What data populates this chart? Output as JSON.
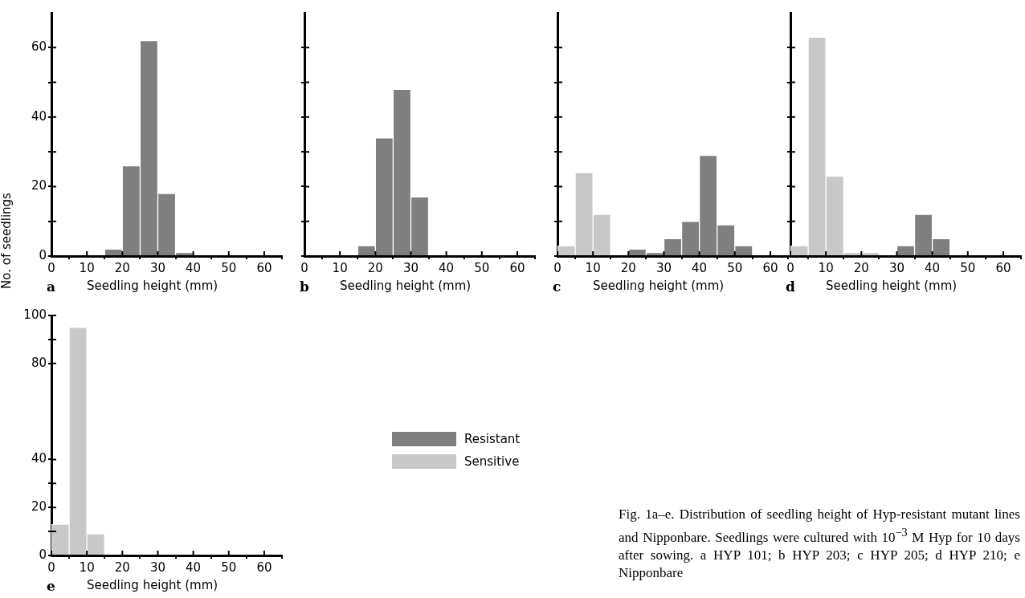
{
  "chart_data": [
    {
      "type": "histogram",
      "title": "a",
      "xlabel": "Seedling height (mm)",
      "ylabel": "No. of seedlings",
      "bins": [
        0,
        5,
        10,
        15,
        20,
        25,
        30,
        35,
        40,
        45,
        50,
        55,
        60,
        65
      ],
      "xlim": [
        0,
        65
      ],
      "xticks": [
        0,
        10,
        20,
        30,
        40,
        50,
        60
      ],
      "ylim": [
        0,
        70
      ],
      "yticks": [
        0,
        {
          "value": 10,
          "label": null
        },
        20,
        {
          "value": 30,
          "label": null
        },
        40,
        {
          "value": 50,
          "label": null
        },
        60
      ],
      "series": [
        {
          "color": "#7f7f7f",
          "values": [
            0,
            0,
            0,
            2,
            26,
            62,
            18,
            1,
            0,
            0,
            0,
            0,
            0
          ]
        }
      ]
    },
    {
      "type": "histogram",
      "title": "b",
      "xlabel": "Seedling height (mm)",
      "tick_labels": "x",
      "bins": [
        0,
        5,
        10,
        15,
        20,
        25,
        30,
        35,
        40,
        45,
        50,
        55,
        60,
        65
      ],
      "xlim": [
        0,
        65
      ],
      "xticks": [
        0,
        10,
        20,
        30,
        40,
        50,
        60
      ],
      "ylim": [
        0,
        70
      ],
      "yticks": [
        0,
        {
          "value": 10,
          "label": null
        },
        20,
        {
          "value": 30,
          "label": null
        },
        40,
        {
          "value": 50,
          "label": null
        },
        60
      ],
      "series": [
        {
          "color": "#7f7f7f",
          "values": [
            0,
            0,
            0,
            3,
            34,
            48,
            17,
            0,
            0,
            0,
            0,
            0,
            0
          ]
        }
      ]
    },
    {
      "type": "histogram",
      "title": "c",
      "xlabel": "Seedling height (mm)",
      "tick_labels": "x",
      "bins": [
        0,
        5,
        10,
        15,
        20,
        25,
        30,
        35,
        40,
        45,
        50,
        55,
        60,
        65
      ],
      "xlim": [
        0,
        65
      ],
      "xticks": [
        0,
        10,
        20,
        30,
        40,
        50,
        60
      ],
      "ylim": [
        0,
        70
      ],
      "yticks": [
        0,
        {
          "value": 10,
          "label": null
        },
        20,
        {
          "value": 30,
          "label": null
        },
        40,
        {
          "value": 50,
          "label": null
        },
        60
      ],
      "series": [
        {
          "color": "#7f7f7f",
          "values": [
            0,
            0,
            0,
            0,
            2,
            1,
            5,
            10,
            29,
            9,
            3,
            0,
            0
          ]
        },
        {
          "color": "#c8c8c8",
          "values": [
            3,
            24,
            12,
            0,
            0,
            0,
            0,
            0,
            0,
            0,
            0,
            0,
            0
          ]
        }
      ]
    },
    {
      "type": "histogram",
      "title": "d",
      "xlabel": "Seedling height (mm)",
      "tick_labels": "x",
      "bins": [
        0,
        5,
        10,
        15,
        20,
        25,
        30,
        35,
        40,
        45,
        50,
        55,
        60,
        65
      ],
      "xlim": [
        0,
        65
      ],
      "xticks": [
        0,
        10,
        20,
        30,
        40,
        50,
        60
      ],
      "ylim": [
        0,
        70
      ],
      "yticks": [
        0,
        {
          "value": 10,
          "label": null
        },
        20,
        {
          "value": 30,
          "label": null
        },
        40,
        {
          "value": 50,
          "label": null
        },
        60
      ],
      "series": [
        {
          "color": "#7f7f7f",
          "values": [
            0,
            0,
            0,
            0,
            0,
            0,
            3,
            12,
            5,
            0,
            0,
            0,
            0
          ]
        },
        {
          "color": "#c8c8c8",
          "values": [
            3,
            63,
            23,
            1,
            1,
            0,
            0,
            0,
            0,
            0,
            0,
            0,
            0
          ]
        }
      ]
    },
    {
      "type": "histogram",
      "title": "e",
      "xlabel": "Seedling height (mm)",
      "bins": [
        0,
        5,
        10,
        15,
        20,
        25,
        30,
        35,
        40,
        45,
        50,
        55,
        60,
        65
      ],
      "xlim": [
        0,
        65
      ],
      "xticks": [
        0,
        10,
        20,
        30,
        40,
        50,
        60
      ],
      "ylim": [
        0,
        100
      ],
      "yticks": [
        0,
        {
          "value": 10,
          "label": null
        },
        20,
        {
          "value": 30,
          "label": null
        },
        40,
        80,
        {
          "value": 90,
          "label": null
        },
        100
      ],
      "legend": "right",
      "annotations": [
        "Fig. 1a–e. Distribution of seedling height of Hyp-resistant mutant lines and Nipponbare. Seedlings were cultured with 10$^{−3}$ M Hyp for 10 days after sowing. a HYP 101; b HYP 203; c HYP 205; d HYP 210; e Nipponbare"
      ],
      "series": [
        {
          "name": "Resistant",
          "color": "#7f7f7f",
          "values": [
            0,
            0,
            0,
            0,
            0,
            0,
            0,
            0,
            0,
            0,
            0,
            0,
            0
          ]
        },
        {
          "name": "Sensitive",
          "color": "#c8c8c8",
          "values": [
            13,
            95,
            9,
            0,
            0,
            0,
            0,
            0,
            0,
            0,
            0,
            0,
            0
          ]
        }
      ]
    }
  ]
}
